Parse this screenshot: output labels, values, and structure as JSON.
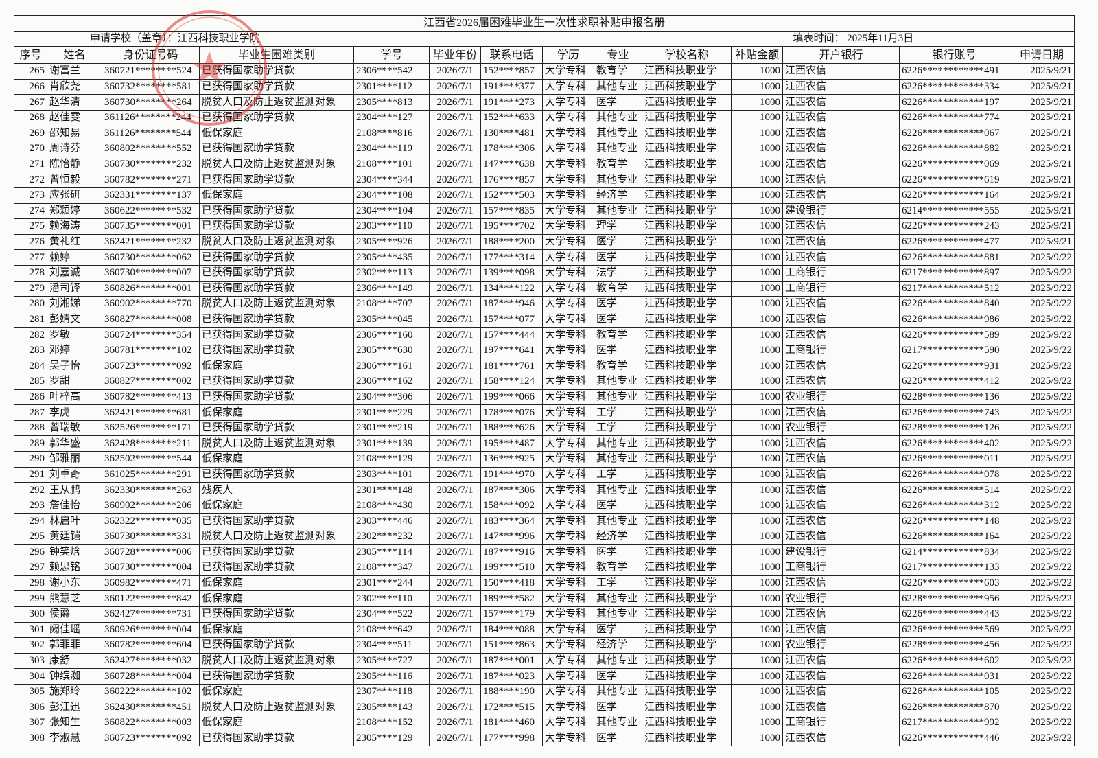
{
  "header": {
    "title": "江西省2026届困难毕业生一次性求职补贴申报名册",
    "school": "申请学校（盖章）：江西科技职业学院",
    "fill_time": "填表时间： 2025年11月3日"
  },
  "table": {
    "columns": [
      "序号",
      "姓名",
      "身份证号码",
      "毕业生困难类别",
      "学号",
      "毕业年份",
      "联系电话",
      "学历",
      "专业",
      "学校名称",
      "补贴金额",
      "开户银行",
      "银行账号",
      "申请日期"
    ],
    "rows": [
      [
        265,
        "谢富兰",
        "360721********524",
        "已获得国家助学贷款",
        "2306****542",
        "2026/7/1",
        "152****857",
        "大学专科",
        "教育学",
        "江西科技职业学",
        1000,
        "江西农信",
        "6226************491",
        "2025/9/21"
      ],
      [
        266,
        "肖欣尧",
        "360732********581",
        "已获得国家助学贷款",
        "2301****112",
        "2026/7/1",
        "191****377",
        "大学专科",
        "其他专业",
        "江西科技职业学",
        1000,
        "江西农信",
        "6226************334",
        "2025/9/21"
      ],
      [
        267,
        "赵华清",
        "360730********264",
        "脱贫人口及防止返贫监测对象",
        "2305****813",
        "2026/7/1",
        "191****273",
        "大学专科",
        "医学",
        "江西科技职业学",
        1000,
        "江西农信",
        "6226************197",
        "2025/9/21"
      ],
      [
        268,
        "赵佳雯",
        "361126********244",
        "已获得国家助学贷款",
        "2304****127",
        "2026/7/1",
        "152****633",
        "大学专科",
        "其他专业",
        "江西科技职业学",
        1000,
        "江西农信",
        "6226************774",
        "2025/9/21"
      ],
      [
        269,
        "邵知易",
        "361126********544",
        "低保家庭",
        "2108****816",
        "2026/7/1",
        "130****481",
        "大学专科",
        "其他专业",
        "江西科技职业学",
        1000,
        "江西农信",
        "6226************067",
        "2025/9/21"
      ],
      [
        270,
        "周诗芬",
        "360802********552",
        "已获得国家助学贷款",
        "2304****119",
        "2026/7/1",
        "178****306",
        "大学专科",
        "其他专业",
        "江西科技职业学",
        1000,
        "江西农信",
        "6226************882",
        "2025/9/21"
      ],
      [
        271,
        "陈怡静",
        "360730********232",
        "脱贫人口及防止返贫监测对象",
        "2108****101",
        "2026/7/1",
        "147****638",
        "大学专科",
        "教育学",
        "江西科技职业学",
        1000,
        "江西农信",
        "6226************069",
        "2025/9/21"
      ],
      [
        272,
        "曾恒毅",
        "360782********271",
        "已获得国家助学贷款",
        "2304****344",
        "2026/7/1",
        "176****857",
        "大学专科",
        "其他专业",
        "江西科技职业学",
        1000,
        "江西农信",
        "6226************619",
        "2025/9/21"
      ],
      [
        273,
        "应张研",
        "362331********137",
        "低保家庭",
        "2304****108",
        "2026/7/1",
        "152****503",
        "大学专科",
        "经济学",
        "江西科技职业学",
        1000,
        "江西农信",
        "6226************164",
        "2025/9/21"
      ],
      [
        274,
        "郑颖婷",
        "360622********532",
        "已获得国家助学贷款",
        "2304****104",
        "2026/7/1",
        "157****835",
        "大学专科",
        "其他专业",
        "江西科技职业学",
        1000,
        "建设银行",
        "6214************555",
        "2025/9/21"
      ],
      [
        275,
        "赖海涛",
        "360735********001",
        "已获得国家助学贷款",
        "2303****110",
        "2026/7/1",
        "195****702",
        "大学专科",
        "理学",
        "江西科技职业学",
        1000,
        "江西农信",
        "6226************243",
        "2025/9/21"
      ],
      [
        276,
        "黄礼红",
        "362421********232",
        "脱贫人口及防止返贫监测对象",
        "2305****926",
        "2026/7/1",
        "188****200",
        "大学专科",
        "医学",
        "江西科技职业学",
        1000,
        "江西农信",
        "6226************477",
        "2025/9/21"
      ],
      [
        277,
        "赖婷",
        "360730********062",
        "已获得国家助学贷款",
        "2305****435",
        "2026/7/1",
        "177****314",
        "大学专科",
        "医学",
        "江西科技职业学",
        1000,
        "江西农信",
        "6226************881",
        "2025/9/22"
      ],
      [
        278,
        "刘嘉诚",
        "360730********007",
        "已获得国家助学贷款",
        "2302****113",
        "2026/7/1",
        "139****098",
        "大学专科",
        "法学",
        "江西科技职业学",
        1000,
        "工商银行",
        "6217************897",
        "2025/9/22"
      ],
      [
        279,
        "潘司铎",
        "360826********001",
        "已获得国家助学贷款",
        "2306****149",
        "2026/7/1",
        "134****122",
        "大学专科",
        "教育学",
        "江西科技职业学",
        1000,
        "工商银行",
        "6217************512",
        "2025/9/22"
      ],
      [
        280,
        "刘湘娣",
        "360902********770",
        "脱贫人口及防止返贫监测对象",
        "2108****707",
        "2026/7/1",
        "187****946",
        "大学专科",
        "医学",
        "江西科技职业学",
        1000,
        "江西农信",
        "6226************840",
        "2025/9/22"
      ],
      [
        281,
        "彭婧文",
        "360827********008",
        "已获得国家助学贷款",
        "2305****045",
        "2026/7/1",
        "157****077",
        "大学专科",
        "医学",
        "江西科技职业学",
        1000,
        "江西农信",
        "6226************986",
        "2025/9/22"
      ],
      [
        282,
        "罗敏",
        "360724********354",
        "已获得国家助学贷款",
        "2306****160",
        "2026/7/1",
        "157****444",
        "大学专科",
        "教育学",
        "江西科技职业学",
        1000,
        "江西农信",
        "6226************589",
        "2025/9/22"
      ],
      [
        283,
        "邓婷",
        "360781********102",
        "已获得国家助学贷款",
        "2305****630",
        "2026/7/1",
        "197****641",
        "大学专科",
        "医学",
        "江西科技职业学",
        1000,
        "工商银行",
        "6217************590",
        "2025/9/22"
      ],
      [
        284,
        "吴子怡",
        "360723********092",
        "低保家庭",
        "2306****161",
        "2026/7/1",
        "181****761",
        "大学专科",
        "教育学",
        "江西科技职业学",
        1000,
        "江西农信",
        "6226************931",
        "2025/9/22"
      ],
      [
        285,
        "罗甜",
        "360827********002",
        "已获得国家助学贷款",
        "2306****162",
        "2026/7/1",
        "158****124",
        "大学专科",
        "其他专业",
        "江西科技职业学",
        1000,
        "江西农信",
        "6226************412",
        "2025/9/22"
      ],
      [
        286,
        "叶梓高",
        "360782********413",
        "已获得国家助学贷款",
        "2304****306",
        "2026/7/1",
        "199****066",
        "大学专科",
        "其他专业",
        "江西科技职业学",
        1000,
        "农业银行",
        "6228************136",
        "2025/9/22"
      ],
      [
        287,
        "李虎",
        "362421********681",
        "低保家庭",
        "2301****229",
        "2026/7/1",
        "178****076",
        "大学专科",
        "工学",
        "江西科技职业学",
        1000,
        "江西农信",
        "6226************743",
        "2025/9/22"
      ],
      [
        288,
        "曾瑞敏",
        "362526********171",
        "已获得国家助学贷款",
        "2301****219",
        "2026/7/1",
        "188****626",
        "大学专科",
        "工学",
        "江西科技职业学",
        1000,
        "农业银行",
        "6228************126",
        "2025/9/22"
      ],
      [
        289,
        "郭华盛",
        "362428********211",
        "脱贫人口及防止返贫监测对象",
        "2301****139",
        "2026/7/1",
        "195****487",
        "大学专科",
        "其他专业",
        "江西科技职业学",
        1000,
        "江西农信",
        "6226************402",
        "2025/9/22"
      ],
      [
        290,
        "邹雅丽",
        "362502********544",
        "低保家庭",
        "2108****129",
        "2026/7/1",
        "136****925",
        "大学专科",
        "其他专业",
        "江西科技职业学",
        1000,
        "江西农信",
        "6226************011",
        "2025/9/22"
      ],
      [
        291,
        "刘卓奇",
        "361025********291",
        "已获得国家助学贷款",
        "2303****101",
        "2026/7/1",
        "191****970",
        "大学专科",
        "工学",
        "江西科技职业学",
        1000,
        "江西农信",
        "6226************078",
        "2025/9/22"
      ],
      [
        292,
        "王从鹏",
        "362330********263",
        "残疾人",
        "2301****148",
        "2026/7/1",
        "187****306",
        "大学专科",
        "其他专业",
        "江西科技职业学",
        1000,
        "江西农信",
        "6226************514",
        "2025/9/22"
      ],
      [
        293,
        "詹佳怡",
        "360902********206",
        "低保家庭",
        "2108****430",
        "2026/7/1",
        "158****092",
        "大学专科",
        "医学",
        "江西科技职业学",
        1000,
        "江西农信",
        "6226************312",
        "2025/9/22"
      ],
      [
        294,
        "林启叶",
        "362322********035",
        "已获得国家助学贷款",
        "2303****446",
        "2026/7/1",
        "183****364",
        "大学专科",
        "其他专业",
        "江西科技职业学",
        1000,
        "江西农信",
        "6226************148",
        "2025/9/22"
      ],
      [
        295,
        "黄廷铠",
        "360730********331",
        "脱贫人口及防止返贫监测对象",
        "2302****232",
        "2026/7/1",
        "147****996",
        "大学专科",
        "经济学",
        "江西科技职业学",
        1000,
        "江西农信",
        "6226************164",
        "2025/9/22"
      ],
      [
        296,
        "钟笑焓",
        "360728********006",
        "已获得国家助学贷款",
        "2305****114",
        "2026/7/1",
        "187****916",
        "大学专科",
        "医学",
        "江西科技职业学",
        1000,
        "建设银行",
        "6214************834",
        "2025/9/22"
      ],
      [
        297,
        "赖思铭",
        "360730********004",
        "已获得国家助学贷款",
        "2108****347",
        "2026/7/1",
        "199****510",
        "大学专科",
        "教育学",
        "江西科技职业学",
        1000,
        "工商银行",
        "6217************133",
        "2025/9/22"
      ],
      [
        298,
        "谢小东",
        "360982********471",
        "低保家庭",
        "2301****244",
        "2026/7/1",
        "150****418",
        "大学专科",
        "工学",
        "江西科技职业学",
        1000,
        "江西农信",
        "6226************603",
        "2025/9/22"
      ],
      [
        299,
        "熊慧芝",
        "360122********842",
        "低保家庭",
        "2302****110",
        "2026/7/1",
        "189****582",
        "大学专科",
        "其他专业",
        "江西科技职业学",
        1000,
        "农业银行",
        "6228************956",
        "2025/9/22"
      ],
      [
        300,
        "侯爵",
        "362427********731",
        "已获得国家助学贷款",
        "2304****522",
        "2026/7/1",
        "157****179",
        "大学专科",
        "其他专业",
        "江西科技职业学",
        1000,
        "江西农信",
        "6226************443",
        "2025/9/22"
      ],
      [
        301,
        "阙佳瑶",
        "360926********004",
        "低保家庭",
        "2108****642",
        "2026/7/1",
        "184****088",
        "大学专科",
        "医学",
        "江西科技职业学",
        1000,
        "江西农信",
        "6226************569",
        "2025/9/22"
      ],
      [
        302,
        "郭菲菲",
        "360782********604",
        "已获得国家助学贷款",
        "2304****511",
        "2026/7/1",
        "151****863",
        "大学专科",
        "经济学",
        "江西科技职业学",
        1000,
        "农业银行",
        "6228************456",
        "2025/9/22"
      ],
      [
        303,
        "康舒",
        "362427********032",
        "脱贫人口及防止返贫监测对象",
        "2305****727",
        "2026/7/1",
        "187****001",
        "大学专科",
        "其他专业",
        "江西科技职业学",
        1000,
        "江西农信",
        "6226************602",
        "2025/9/22"
      ],
      [
        304,
        "钟缤洳",
        "360728********004",
        "已获得国家助学贷款",
        "2305****116",
        "2026/7/1",
        "187****023",
        "大学专科",
        "医学",
        "江西科技职业学",
        1000,
        "江西农信",
        "6226************031",
        "2025/9/22"
      ],
      [
        305,
        "施郑玲",
        "360222********102",
        "低保家庭",
        "2307****118",
        "2026/7/1",
        "188****190",
        "大学专科",
        "其他专业",
        "江西科技职业学",
        1000,
        "江西农信",
        "6226************105",
        "2025/9/22"
      ],
      [
        306,
        "彭江迅",
        "362430********451",
        "脱贫人口及防止返贫监测对象",
        "2305****143",
        "2026/7/1",
        "172****515",
        "大学专科",
        "医学",
        "江西科技职业学",
        1000,
        "江西农信",
        "6226************870",
        "2025/9/22"
      ],
      [
        307,
        "张知生",
        "360822********003",
        "低保家庭",
        "2108****152",
        "2026/7/1",
        "181****460",
        "大学专科",
        "其他专业",
        "江西科技职业学",
        1000,
        "工商银行",
        "6217************992",
        "2025/9/22"
      ],
      [
        308,
        "李淑慧",
        "360723********092",
        "已获得国家助学贷款",
        "2305****129",
        "2026/7/1",
        "177****998",
        "大学专科",
        "医学",
        "江西科技职业学",
        1000,
        "江西农信",
        "6226************446",
        "2025/9/22"
      ]
    ]
  }
}
